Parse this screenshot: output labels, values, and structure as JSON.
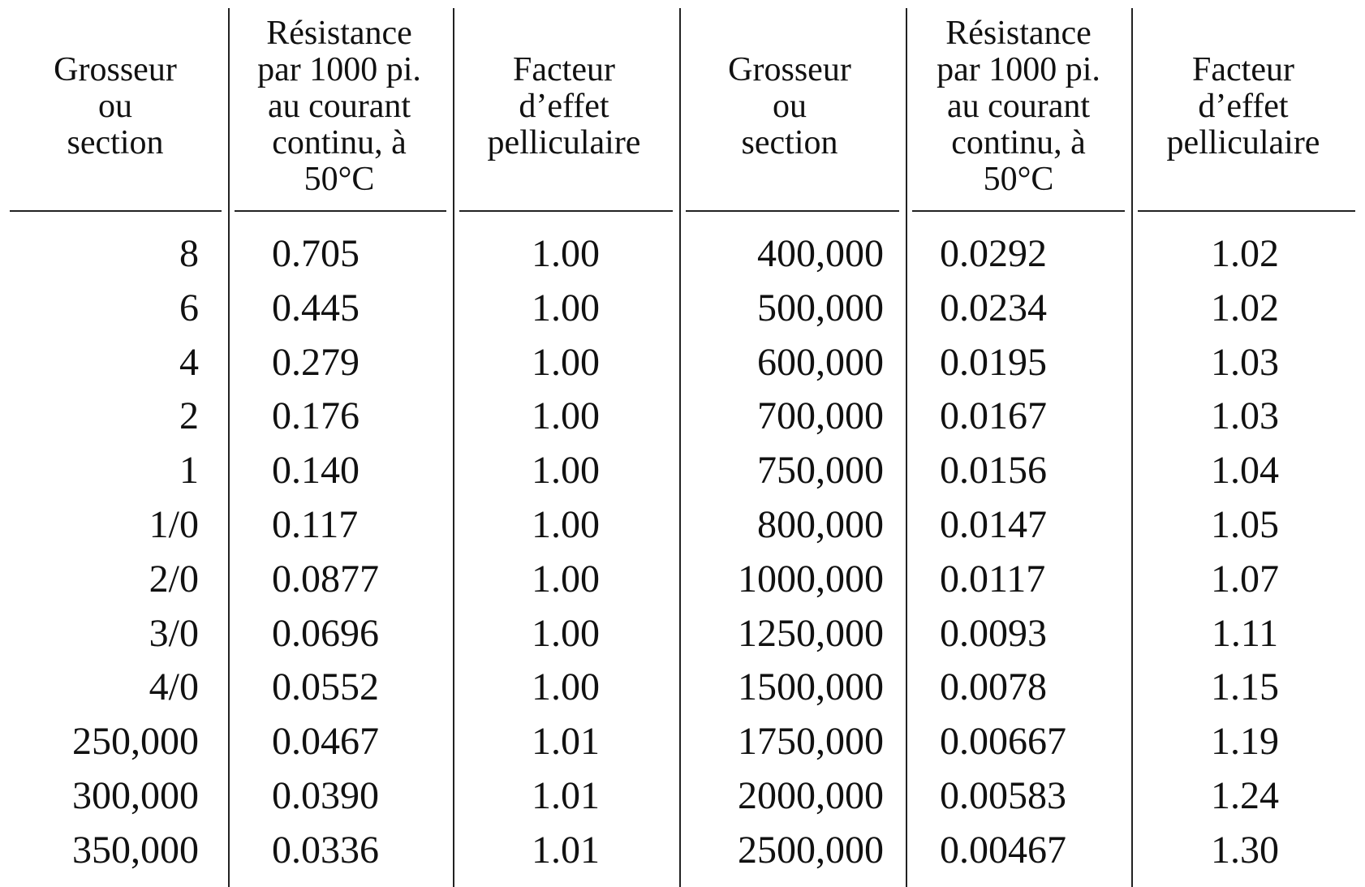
{
  "table": {
    "headers": [
      [
        "Grosseur",
        "ou",
        "section"
      ],
      [
        "Résistance",
        "par 1000 pi.",
        "au courant",
        "continu, à",
        "50°C"
      ],
      [
        "Facteur",
        "d’effet",
        "pelliculaire"
      ],
      [
        "Grosseur",
        "ou",
        "section"
      ],
      [
        "Résistance",
        "par 1000 pi.",
        "au courant",
        "continu, à",
        "50°C"
      ],
      [
        "Facteur",
        "d’effet",
        "pelliculaire"
      ]
    ],
    "rows": [
      [
        "8",
        "0.705",
        "1.00",
        "400,000",
        "0.0292",
        "1.02"
      ],
      [
        "6",
        "0.445",
        "1.00",
        "500,000",
        "0.0234",
        "1.02"
      ],
      [
        "4",
        "0.279",
        "1.00",
        "600,000",
        "0.0195",
        "1.03"
      ],
      [
        "2",
        "0.176",
        "1.00",
        "700,000",
        "0.0167",
        "1.03"
      ],
      [
        "1",
        "0.140",
        "1.00",
        "750,000",
        "0.0156",
        "1.04"
      ],
      [
        "1/0",
        "0.117",
        "1.00",
        "800,000",
        "0.0147",
        "1.05"
      ],
      [
        "2/0",
        "0.0877",
        "1.00",
        "1000,000",
        "0.0117",
        "1.07"
      ],
      [
        "3/0",
        "0.0696",
        "1.00",
        "1250,000",
        "0.0093",
        "1.11"
      ],
      [
        "4/0",
        "0.0552",
        "1.00",
        "1500,000",
        "0.0078",
        "1.15"
      ],
      [
        "250,000",
        "0.0467",
        "1.01",
        "1750,000",
        "0.00667",
        "1.19"
      ],
      [
        "300,000",
        "0.0390",
        "1.01",
        "2000,000",
        "0.00583",
        "1.24"
      ],
      [
        "350,000",
        "0.0336",
        "1.01",
        "2500,000",
        "0.00467",
        "1.30"
      ]
    ]
  }
}
